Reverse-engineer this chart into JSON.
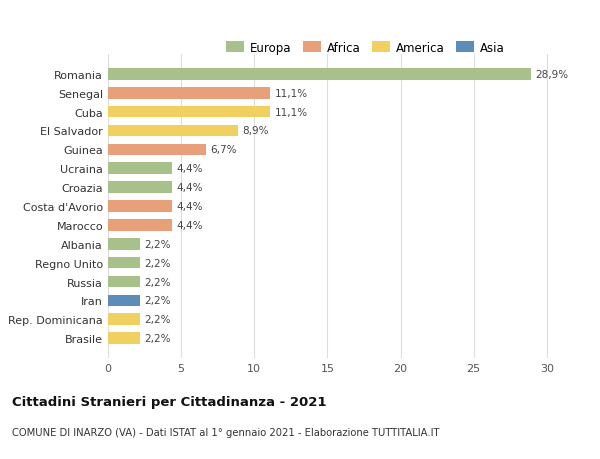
{
  "countries": [
    "Romania",
    "Senegal",
    "Cuba",
    "El Salvador",
    "Guinea",
    "Ucraina",
    "Croazia",
    "Costa d'Avorio",
    "Marocco",
    "Albania",
    "Regno Unito",
    "Russia",
    "Iran",
    "Rep. Dominicana",
    "Brasile"
  ],
  "values": [
    28.9,
    11.1,
    11.1,
    8.9,
    6.7,
    4.4,
    4.4,
    4.4,
    4.4,
    2.2,
    2.2,
    2.2,
    2.2,
    2.2,
    2.2
  ],
  "labels": [
    "28,9%",
    "11,1%",
    "11,1%",
    "8,9%",
    "6,7%",
    "4,4%",
    "4,4%",
    "4,4%",
    "4,4%",
    "2,2%",
    "2,2%",
    "2,2%",
    "2,2%",
    "2,2%",
    "2,2%"
  ],
  "continents": [
    "Europa",
    "Africa",
    "America",
    "America",
    "Africa",
    "Europa",
    "Europa",
    "Africa",
    "Africa",
    "Europa",
    "Europa",
    "Europa",
    "Asia",
    "America",
    "America"
  ],
  "colors": {
    "Europa": "#a8c08a",
    "Africa": "#e8a07a",
    "America": "#f0d060",
    "Asia": "#5b8db8"
  },
  "title": "Cittadini Stranieri per Cittadinanza - 2021",
  "subtitle": "COMUNE DI INARZO (VA) - Dati ISTAT al 1° gennaio 2021 - Elaborazione TUTTITALIA.IT",
  "xlim": [
    0,
    32
  ],
  "xticks": [
    0,
    5,
    10,
    15,
    20,
    25,
    30
  ],
  "background_color": "#ffffff",
  "grid_color": "#dddddd",
  "bar_height": 0.62,
  "legend_entries": [
    "Europa",
    "Africa",
    "America",
    "Asia"
  ]
}
